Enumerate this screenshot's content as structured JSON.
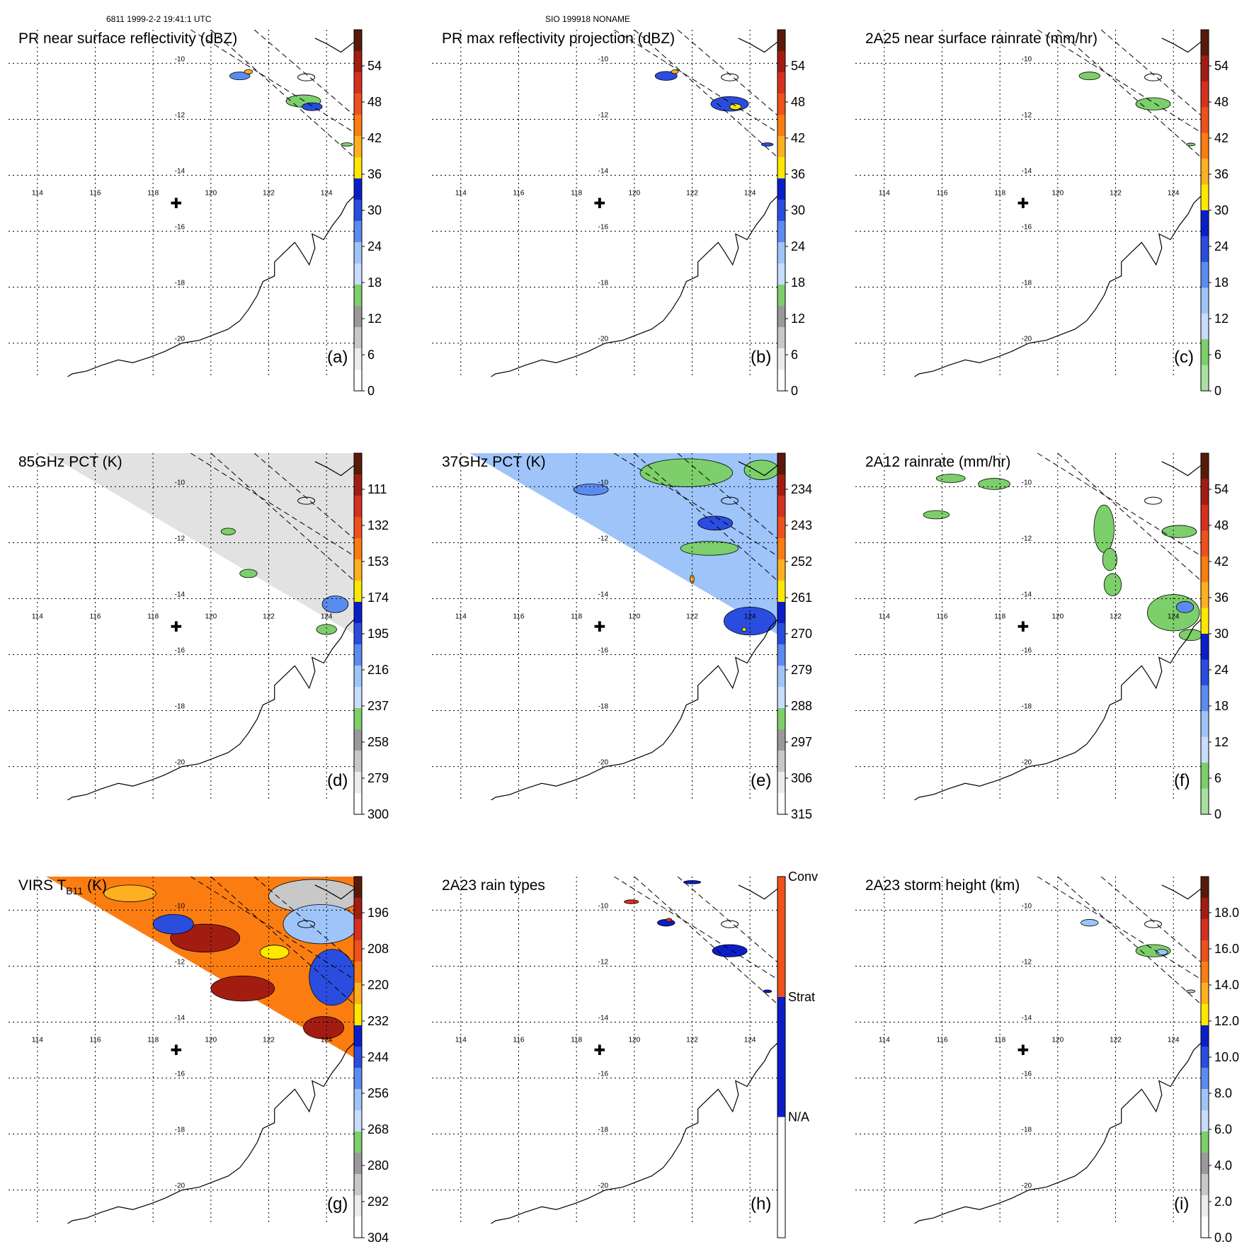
{
  "header": {
    "left": "6811 1999-2-2 19:41:1 UTC",
    "center": "SIO 199918 NONAME"
  },
  "panel_extent": {
    "lon_min": 113,
    "lon_max": 125,
    "lat_min": -21.2,
    "lat_max": -8.8
  },
  "marker": {
    "lon": 118.8,
    "lat": -15.0,
    "symbol": "✚"
  },
  "chart_data": [
    {
      "id": "a",
      "type": "heatmap",
      "title": "PR near surface reflectivity (dBZ)",
      "panel_label": "(a)",
      "colorbar_ticks": [
        "54",
        "48",
        "42",
        "36",
        "30",
        "24",
        "18",
        "12",
        "6",
        "0"
      ],
      "colorbar_colors": [
        "#5a1a0a",
        "#a31c12",
        "#d7301f",
        "#f0501c",
        "#fb7d12",
        "#ffb020",
        "#ffe800",
        "#0a1ec8",
        "#2a4de0",
        "#5a8cf0",
        "#9fc4fa",
        "#c8dcfc",
        "#7ccf6a",
        "#9a9a9a",
        "#c8c8c8",
        "#ececec",
        "#ffffff"
      ],
      "xticks": [
        "114",
        "116",
        "118",
        "120",
        "122",
        "124"
      ],
      "yticks": [
        "-10",
        "-12",
        "-14",
        "-16",
        "-18",
        "-20"
      ],
      "swath": "pr_narrow",
      "echoes": [
        {
          "lon": 121.0,
          "lat": -10.45,
          "rx": 0.35,
          "ry": 0.14,
          "color": "#5a8cf0"
        },
        {
          "lon": 123.2,
          "lat": -11.35,
          "rx": 0.6,
          "ry": 0.22,
          "color": "#7ccf6a"
        },
        {
          "lon": 123.5,
          "lat": -11.55,
          "rx": 0.35,
          "ry": 0.14,
          "color": "#2a4de0"
        },
        {
          "lon": 121.3,
          "lat": -10.3,
          "rx": 0.14,
          "ry": 0.08,
          "color": "#ffb020"
        },
        {
          "lon": 124.7,
          "lat": -12.9,
          "rx": 0.2,
          "ry": 0.06,
          "color": "#7ccf6a"
        }
      ]
    },
    {
      "id": "b",
      "type": "heatmap",
      "title": "PR max reflectivity projection (dBZ)",
      "panel_label": "(b)",
      "colorbar_ticks": [
        "54",
        "48",
        "42",
        "36",
        "30",
        "24",
        "18",
        "12",
        "6",
        "0"
      ],
      "colorbar_colors": [
        "#5a1a0a",
        "#a31c12",
        "#d7301f",
        "#f0501c",
        "#fb7d12",
        "#ffb020",
        "#ffe800",
        "#0a1ec8",
        "#2a4de0",
        "#5a8cf0",
        "#9fc4fa",
        "#c8dcfc",
        "#7ccf6a",
        "#9a9a9a",
        "#c8c8c8",
        "#ececec",
        "#ffffff"
      ],
      "xticks": [
        "114",
        "116",
        "118",
        "120",
        "122",
        "124"
      ],
      "yticks": [
        "-10",
        "-12",
        "-14",
        "-16",
        "-18",
        "-20"
      ],
      "swath": "pr_narrow",
      "echoes": [
        {
          "lon": 121.1,
          "lat": -10.45,
          "rx": 0.38,
          "ry": 0.16,
          "color": "#2a4de0"
        },
        {
          "lon": 123.3,
          "lat": -11.45,
          "rx": 0.65,
          "ry": 0.26,
          "color": "#2a4de0"
        },
        {
          "lon": 123.5,
          "lat": -11.55,
          "rx": 0.2,
          "ry": 0.1,
          "color": "#ffe800"
        },
        {
          "lon": 121.4,
          "lat": -10.3,
          "rx": 0.12,
          "ry": 0.07,
          "color": "#ffb020"
        },
        {
          "lon": 124.6,
          "lat": -12.9,
          "rx": 0.2,
          "ry": 0.06,
          "color": "#2a4de0"
        }
      ]
    },
    {
      "id": "c",
      "type": "heatmap",
      "title": "2A25 near surface rainrate (mm/hr)",
      "panel_label": "(c)",
      "colorbar_ticks": [
        "54",
        "48",
        "42",
        "36",
        "30",
        "24",
        "18",
        "12",
        "6",
        "0"
      ],
      "colorbar_colors": [
        "#5a1a0a",
        "#a31c12",
        "#d7301f",
        "#f0501c",
        "#fb7d12",
        "#ffb020",
        "#ffe800",
        "#0a1ec8",
        "#2a4de0",
        "#5a8cf0",
        "#9fc4fa",
        "#c8dcfc",
        "#7ccf6a",
        "#a8e0a0"
      ],
      "xticks": [
        "114",
        "116",
        "118",
        "120",
        "122",
        "124"
      ],
      "yticks": [
        "-10",
        "-12",
        "-14",
        "-16",
        "-18",
        "-20"
      ],
      "swath": "pr_narrow",
      "echoes": [
        {
          "lon": 121.1,
          "lat": -10.45,
          "rx": 0.36,
          "ry": 0.14,
          "color": "#7ccf6a"
        },
        {
          "lon": 123.3,
          "lat": -11.45,
          "rx": 0.6,
          "ry": 0.22,
          "color": "#7ccf6a"
        },
        {
          "lon": 124.6,
          "lat": -12.9,
          "rx": 0.15,
          "ry": 0.05,
          "color": "#7ccf6a"
        }
      ]
    },
    {
      "id": "d",
      "type": "heatmap",
      "title": "85GHz PCT (K)",
      "panel_label": "(d)",
      "colorbar_ticks": [
        "111",
        "132",
        "153",
        "174",
        "195",
        "216",
        "237",
        "258",
        "279",
        "300"
      ],
      "colorbar_colors": [
        "#5a1a0a",
        "#a31c12",
        "#d7301f",
        "#f0501c",
        "#fb7d12",
        "#ffb020",
        "#ffe800",
        "#0a1ec8",
        "#2a4de0",
        "#5a8cf0",
        "#9fc4fa",
        "#c8dcfc",
        "#7ccf6a",
        "#9a9a9a",
        "#c8c8c8",
        "#ececec",
        "#ffffff"
      ],
      "xticks": [
        "114",
        "116",
        "118",
        "120",
        "122",
        "124"
      ],
      "yticks": [
        "-10",
        "-12",
        "-14",
        "-16",
        "-18",
        "-20"
      ],
      "swath": "tmi",
      "swath_fill": "#e2e2e2",
      "echoes": [
        {
          "lon": 120.6,
          "lat": -11.6,
          "rx": 0.25,
          "ry": 0.12,
          "color": "#7ccf6a"
        },
        {
          "lon": 121.3,
          "lat": -13.1,
          "rx": 0.3,
          "ry": 0.15,
          "color": "#7ccf6a"
        },
        {
          "lon": 124.3,
          "lat": -14.2,
          "rx": 0.45,
          "ry": 0.3,
          "color": "#5a8cf0"
        },
        {
          "lon": 124.0,
          "lat": -15.1,
          "rx": 0.35,
          "ry": 0.18,
          "color": "#7ccf6a"
        }
      ]
    },
    {
      "id": "e",
      "type": "heatmap",
      "title": "37GHz PCT (K)",
      "panel_label": "(e)",
      "colorbar_ticks": [
        "234",
        "243",
        "252",
        "261",
        "270",
        "279",
        "288",
        "297",
        "306",
        "315"
      ],
      "colorbar_colors": [
        "#5a1a0a",
        "#a31c12",
        "#d7301f",
        "#f0501c",
        "#fb7d12",
        "#ffb020",
        "#ffe800",
        "#0a1ec8",
        "#2a4de0",
        "#5a8cf0",
        "#9fc4fa",
        "#c8dcfc",
        "#7ccf6a",
        "#9a9a9a",
        "#c8c8c8",
        "#ececec",
        "#ffffff"
      ],
      "xticks": [
        "114",
        "116",
        "118",
        "120",
        "122",
        "124"
      ],
      "yticks": [
        "-10",
        "-12",
        "-14",
        "-16",
        "-18",
        "-20"
      ],
      "swath": "tmi",
      "swath_fill": "#9fc4fa",
      "echoes": [
        {
          "lon": 121.8,
          "lat": -9.5,
          "rx": 1.6,
          "ry": 0.5,
          "color": "#7ccf6a"
        },
        {
          "lon": 124.4,
          "lat": -9.4,
          "rx": 0.6,
          "ry": 0.35,
          "color": "#7ccf6a"
        },
        {
          "lon": 122.6,
          "lat": -12.2,
          "rx": 1.0,
          "ry": 0.25,
          "color": "#7ccf6a"
        },
        {
          "lon": 118.5,
          "lat": -10.1,
          "rx": 0.6,
          "ry": 0.2,
          "color": "#5a8cf0"
        },
        {
          "lon": 122.8,
          "lat": -11.3,
          "rx": 0.6,
          "ry": 0.25,
          "color": "#2a4de0"
        },
        {
          "lon": 124.0,
          "lat": -14.8,
          "rx": 0.9,
          "ry": 0.5,
          "color": "#2a4de0"
        },
        {
          "lon": 122.0,
          "lat": -13.3,
          "rx": 0.07,
          "ry": 0.15,
          "color": "#ffb020"
        },
        {
          "lon": 123.8,
          "lat": -15.1,
          "rx": 0.07,
          "ry": 0.07,
          "color": "#ffe800"
        }
      ]
    },
    {
      "id": "f",
      "type": "heatmap",
      "title": "2A12 rainrate (mm/hr)",
      "panel_label": "(f)",
      "colorbar_ticks": [
        "54",
        "48",
        "42",
        "36",
        "30",
        "24",
        "18",
        "12",
        "6",
        "0"
      ],
      "colorbar_colors": [
        "#5a1a0a",
        "#a31c12",
        "#d7301f",
        "#f0501c",
        "#fb7d12",
        "#ffb020",
        "#ffe800",
        "#0a1ec8",
        "#2a4de0",
        "#5a8cf0",
        "#9fc4fa",
        "#c8dcfc",
        "#7ccf6a",
        "#a8e0a0"
      ],
      "xticks": [
        "114",
        "116",
        "118",
        "120",
        "122",
        "124"
      ],
      "yticks": [
        "-10",
        "-12",
        "-14",
        "-16",
        "-18",
        "-20"
      ],
      "swath": "none",
      "echoes": [
        {
          "lon": 116.3,
          "lat": -9.7,
          "rx": 0.5,
          "ry": 0.15,
          "color": "#7ccf6a"
        },
        {
          "lon": 117.8,
          "lat": -9.9,
          "rx": 0.55,
          "ry": 0.2,
          "color": "#7ccf6a"
        },
        {
          "lon": 115.8,
          "lat": -11.0,
          "rx": 0.45,
          "ry": 0.15,
          "color": "#7ccf6a"
        },
        {
          "lon": 121.6,
          "lat": -11.5,
          "rx": 0.35,
          "ry": 0.85,
          "color": "#7ccf6a"
        },
        {
          "lon": 121.8,
          "lat": -12.6,
          "rx": 0.25,
          "ry": 0.4,
          "color": "#7ccf6a"
        },
        {
          "lon": 121.9,
          "lat": -13.5,
          "rx": 0.3,
          "ry": 0.4,
          "color": "#7ccf6a"
        },
        {
          "lon": 124.2,
          "lat": -11.6,
          "rx": 0.6,
          "ry": 0.22,
          "color": "#7ccf6a"
        },
        {
          "lon": 124.0,
          "lat": -14.5,
          "rx": 0.9,
          "ry": 0.65,
          "color": "#7ccf6a"
        },
        {
          "lon": 124.4,
          "lat": -14.3,
          "rx": 0.3,
          "ry": 0.2,
          "color": "#5a8cf0"
        },
        {
          "lon": 124.6,
          "lat": -15.3,
          "rx": 0.4,
          "ry": 0.2,
          "color": "#7ccf6a"
        }
      ]
    },
    {
      "id": "g",
      "type": "heatmap",
      "title": "VIRS T",
      "title_subscript": "B11",
      "title_suffix": "(K)",
      "panel_label": "(g)",
      "colorbar_ticks": [
        "196",
        "208",
        "220",
        "232",
        "244",
        "256",
        "268",
        "280",
        "292",
        "304"
      ],
      "colorbar_colors": [
        "#5a1a0a",
        "#a31c12",
        "#d7301f",
        "#f0501c",
        "#fb7d12",
        "#ffb020",
        "#ffe800",
        "#0a1ec8",
        "#2a4de0",
        "#5a8cf0",
        "#9fc4fa",
        "#c8dcfc",
        "#7ccf6a",
        "#9a9a9a",
        "#c8c8c8",
        "#ececec",
        "#ffffff"
      ],
      "xticks": [
        "114",
        "116",
        "118",
        "120",
        "122",
        "124"
      ],
      "yticks": [
        "-10",
        "-12",
        "-14",
        "-16",
        "-18",
        "-20"
      ],
      "swath": "tmi",
      "swath_fill": "#fb7d12",
      "echoes": [
        {
          "lon": 123.6,
          "lat": -9.5,
          "rx": 1.6,
          "ry": 0.6,
          "color": "#c8c8c8"
        },
        {
          "lon": 123.8,
          "lat": -10.5,
          "rx": 1.3,
          "ry": 0.7,
          "color": "#9fc4fa"
        },
        {
          "lon": 124.2,
          "lat": -12.4,
          "rx": 0.8,
          "ry": 1.0,
          "color": "#2a4de0"
        },
        {
          "lon": 119.8,
          "lat": -11.0,
          "rx": 1.2,
          "ry": 0.5,
          "color": "#a31c12"
        },
        {
          "lon": 121.1,
          "lat": -12.8,
          "rx": 1.1,
          "ry": 0.45,
          "color": "#a31c12"
        },
        {
          "lon": 118.7,
          "lat": -10.5,
          "rx": 0.7,
          "ry": 0.35,
          "color": "#2a4de0"
        },
        {
          "lon": 117.2,
          "lat": -9.4,
          "rx": 0.9,
          "ry": 0.3,
          "color": "#ffb020"
        },
        {
          "lon": 123.9,
          "lat": -14.2,
          "rx": 0.7,
          "ry": 0.4,
          "color": "#a31c12"
        },
        {
          "lon": 122.2,
          "lat": -11.5,
          "rx": 0.5,
          "ry": 0.25,
          "color": "#ffe800"
        }
      ]
    },
    {
      "id": "h",
      "type": "heatmap",
      "title": "2A23 rain types",
      "panel_label": "(h)",
      "colorbar_ticks": [
        "Conv",
        "Strat",
        "N/A"
      ],
      "colorbar_colors": [
        "#f0501c",
        "#0a1ec8",
        "#ffffff"
      ],
      "categorical": true,
      "xticks": [
        "114",
        "116",
        "118",
        "120",
        "122",
        "124"
      ],
      "yticks": [
        "-10",
        "-12",
        "-14",
        "-16",
        "-18",
        "-20"
      ],
      "swath": "pr_narrow",
      "echoes": [
        {
          "lon": 121.1,
          "lat": -10.45,
          "rx": 0.3,
          "ry": 0.12,
          "color": "#0a1ec8"
        },
        {
          "lon": 123.3,
          "lat": -11.45,
          "rx": 0.6,
          "ry": 0.22,
          "color": "#0a1ec8"
        },
        {
          "lon": 121.2,
          "lat": -10.35,
          "rx": 0.1,
          "ry": 0.06,
          "color": "#d7301f"
        },
        {
          "lon": 119.9,
          "lat": -9.7,
          "rx": 0.25,
          "ry": 0.07,
          "color": "#d7301f"
        },
        {
          "lon": 124.6,
          "lat": -12.9,
          "rx": 0.15,
          "ry": 0.05,
          "color": "#0a1ec8"
        },
        {
          "lon": 122.0,
          "lat": -9.0,
          "rx": 0.3,
          "ry": 0.06,
          "color": "#0a1ec8"
        }
      ]
    },
    {
      "id": "i",
      "type": "heatmap",
      "title": "2A23 storm height (km)",
      "panel_label": "(i)",
      "colorbar_ticks": [
        "18.0",
        "16.0",
        "14.0",
        "12.0",
        "10.0",
        "8.0",
        "6.0",
        "4.0",
        "2.0",
        "0.0"
      ],
      "colorbar_colors": [
        "#5a1a0a",
        "#a31c12",
        "#d7301f",
        "#f0501c",
        "#fb7d12",
        "#ffb020",
        "#ffe800",
        "#0a1ec8",
        "#2a4de0",
        "#5a8cf0",
        "#9fc4fa",
        "#c8dcfc",
        "#7ccf6a",
        "#9a9a9a",
        "#c8c8c8",
        "#ececec",
        "#ffffff"
      ],
      "xticks": [
        "114",
        "116",
        "118",
        "120",
        "122",
        "124"
      ],
      "yticks": [
        "-10",
        "-12",
        "-14",
        "-16",
        "-18",
        "-20"
      ],
      "swath": "pr_narrow",
      "echoes": [
        {
          "lon": 121.1,
          "lat": -10.45,
          "rx": 0.3,
          "ry": 0.12,
          "color": "#9fc4fa"
        },
        {
          "lon": 123.3,
          "lat": -11.45,
          "rx": 0.6,
          "ry": 0.22,
          "color": "#7ccf6a"
        },
        {
          "lon": 123.6,
          "lat": -11.5,
          "rx": 0.2,
          "ry": 0.1,
          "color": "#9fc4fa"
        },
        {
          "lon": 124.6,
          "lat": -12.9,
          "rx": 0.15,
          "ry": 0.05,
          "color": "#c8c8c8"
        }
      ]
    }
  ]
}
